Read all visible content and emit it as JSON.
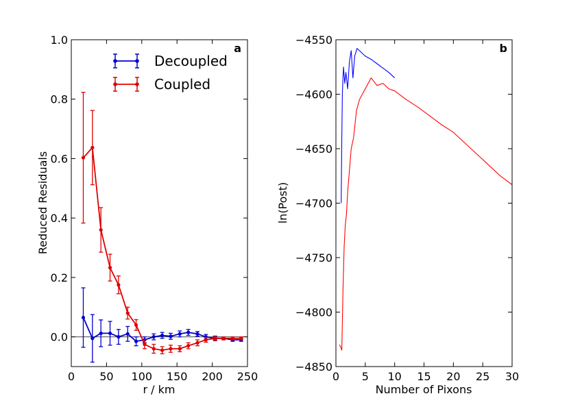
{
  "chart_data": [
    {
      "type": "line",
      "panel_label": "a",
      "xlabel": "r / km",
      "ylabel": "Reduced Residuals",
      "xlim": [
        0,
        250
      ],
      "ylim": [
        -0.1,
        1.0
      ],
      "xticks": [
        0,
        50,
        100,
        150,
        200,
        250
      ],
      "yticks": [
        0.0,
        0.2,
        0.4,
        0.6,
        0.8,
        1.0
      ],
      "xtick_labels": [
        "0",
        "50",
        "100",
        "150",
        "200",
        "250"
      ],
      "ytick_labels": [
        "0.0",
        "0.2",
        "0.4",
        "0.6",
        "0.8",
        "1.0"
      ],
      "legend_position": "top-right",
      "reference_line_y": 0.0,
      "series": [
        {
          "name": "Decoupled",
          "color": "#0000cc",
          "x": [
            17,
            30,
            42,
            55,
            67,
            80,
            92,
            104,
            117,
            129,
            141,
            154,
            166,
            179,
            191,
            204,
            216,
            229,
            241
          ],
          "y": [
            0.065,
            -0.005,
            0.012,
            0.012,
            0.0,
            0.01,
            -0.015,
            -0.01,
            0.0,
            0.005,
            0.002,
            0.01,
            0.015,
            0.01,
            0.0,
            -0.005,
            -0.005,
            -0.01,
            -0.01
          ],
          "yerr": [
            0.1,
            0.08,
            0.045,
            0.04,
            0.025,
            0.025,
            0.015,
            0.01,
            0.01,
            0.01,
            0.01,
            0.01,
            0.01,
            0.008,
            0.008,
            0.005,
            0.005,
            0.005,
            0.005
          ]
        },
        {
          "name": "Coupled",
          "color": "#dd0000",
          "x": [
            17,
            30,
            42,
            55,
            67,
            80,
            92,
            104,
            117,
            129,
            141,
            154,
            166,
            179,
            191,
            204,
            216,
            229,
            241
          ],
          "y": [
            0.603,
            0.637,
            0.36,
            0.233,
            0.175,
            0.08,
            0.04,
            -0.025,
            -0.04,
            -0.045,
            -0.04,
            -0.04,
            -0.03,
            -0.02,
            -0.01,
            -0.005,
            -0.005,
            -0.005,
            -0.005
          ],
          "yerr": [
            0.22,
            0.125,
            0.075,
            0.045,
            0.03,
            0.02,
            0.018,
            0.015,
            0.015,
            0.012,
            0.012,
            0.01,
            0.01,
            0.01,
            0.008,
            0.008,
            0.005,
            0.005,
            0.005
          ]
        }
      ]
    },
    {
      "type": "line",
      "panel_label": "b",
      "xlabel": "Number of Pixons",
      "ylabel": "ln(Post)",
      "xlim": [
        0,
        30
      ],
      "ylim": [
        -4850,
        -4550
      ],
      "xticks": [
        0,
        5,
        10,
        15,
        20,
        25,
        30
      ],
      "yticks": [
        -4850,
        -4800,
        -4750,
        -4700,
        -4650,
        -4600,
        -4550
      ],
      "xtick_labels": [
        "0",
        "5",
        "10",
        "15",
        "20",
        "25",
        "30"
      ],
      "ytick_labels": [
        "−4850",
        "−4800",
        "−4750",
        "−4700",
        "−4650",
        "−4600",
        "−4550"
      ],
      "series": [
        {
          "name": "Decoupled",
          "color": "#0000ff",
          "x": [
            0.9,
            1.0,
            1.1,
            1.2,
            1.3,
            1.5,
            1.7,
            2.0,
            2.3,
            2.6,
            2.9,
            3.2,
            3.6,
            4.0,
            5.0,
            6.0,
            7.0,
            8.0,
            9.0,
            10.0
          ],
          "y": [
            -4700,
            -4640,
            -4600,
            -4585,
            -4575,
            -4590,
            -4580,
            -4595,
            -4570,
            -4560,
            -4585,
            -4565,
            -4558,
            -4560,
            -4565,
            -4568,
            -4572,
            -4576,
            -4580,
            -4585
          ]
        },
        {
          "name": "Coupled",
          "color": "#ff0000",
          "x": [
            0.6,
            0.8,
            1.0,
            1.2,
            1.4,
            1.6,
            1.8,
            2.0,
            2.3,
            2.6,
            3.0,
            3.5,
            4.0,
            4.5,
            5.0,
            5.5,
            6.0,
            7.0,
            8.0,
            9.0,
            10.0,
            12.0,
            14.0,
            16.0,
            18.0,
            20.0,
            22.0,
            24.0,
            26.0,
            28.0,
            30.0
          ],
          "y": [
            -4830,
            -4832,
            -4835,
            -4780,
            -4740,
            -4720,
            -4710,
            -4690,
            -4670,
            -4650,
            -4640,
            -4615,
            -4605,
            -4600,
            -4595,
            -4590,
            -4585,
            -4592,
            -4590,
            -4595,
            -4597,
            -4605,
            -4612,
            -4620,
            -4628,
            -4635,
            -4645,
            -4655,
            -4665,
            -4675,
            -4683
          ]
        }
      ]
    }
  ]
}
